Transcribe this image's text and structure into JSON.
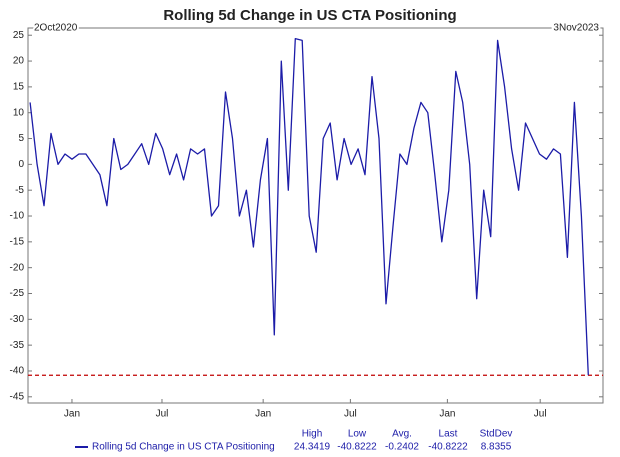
{
  "chart_data": {
    "type": "line",
    "title": "Rolling 5d Change in US CTA Positioning",
    "start_label": "2Oct2020",
    "end_label": "3Nov2023",
    "series": [
      {
        "name": "Rolling 5d Change in US CTA Positioning",
        "color": "#1c1ca8",
        "values": [
          12,
          0,
          -8,
          6,
          0,
          2,
          1,
          2,
          2,
          0,
          -2,
          -8,
          5,
          -1,
          0,
          2,
          4,
          0,
          6,
          3,
          -2,
          2,
          -3,
          3,
          2,
          3,
          -10,
          -8,
          14,
          5,
          -10,
          -5,
          -16,
          -3,
          5,
          -33,
          20,
          -5,
          24.3419,
          24,
          -10,
          -17,
          5,
          8,
          -3,
          5,
          0,
          3,
          -2,
          17,
          5,
          -27,
          -12,
          2,
          0,
          7,
          12,
          10,
          -2,
          -15,
          -5,
          18,
          12,
          0,
          -26,
          -5,
          -14,
          24,
          15,
          3,
          -5,
          8,
          5,
          2,
          1,
          3,
          2,
          -18,
          12,
          -10,
          -40.8222
        ]
      }
    ],
    "xlim": [
      -0.3,
      82.1
    ],
    "xticks": [
      {
        "value": 6.0,
        "label": "Jan"
      },
      {
        "value": 18.9,
        "label": "Jul"
      },
      {
        "value": 33.4,
        "label": "Jan"
      },
      {
        "value": 45.9,
        "label": "Jul"
      },
      {
        "value": 59.8,
        "label": "Jan"
      },
      {
        "value": 73.1,
        "label": "Jul"
      }
    ],
    "ylim": [
      -46.2,
      26.4
    ],
    "yticks": [
      25,
      20,
      15,
      10,
      5,
      0,
      -5,
      -10,
      -15,
      -20,
      -25,
      -30,
      -35,
      -40,
      -45
    ],
    "reference_line": {
      "value": -40.8222,
      "color": "#c00000"
    },
    "stats": {
      "labels": [
        "High",
        "Low",
        "Avg.",
        "Last",
        "StdDev"
      ],
      "values": [
        24.3419,
        -40.8222,
        -0.2402,
        -40.8222,
        8.8355
      ]
    }
  }
}
